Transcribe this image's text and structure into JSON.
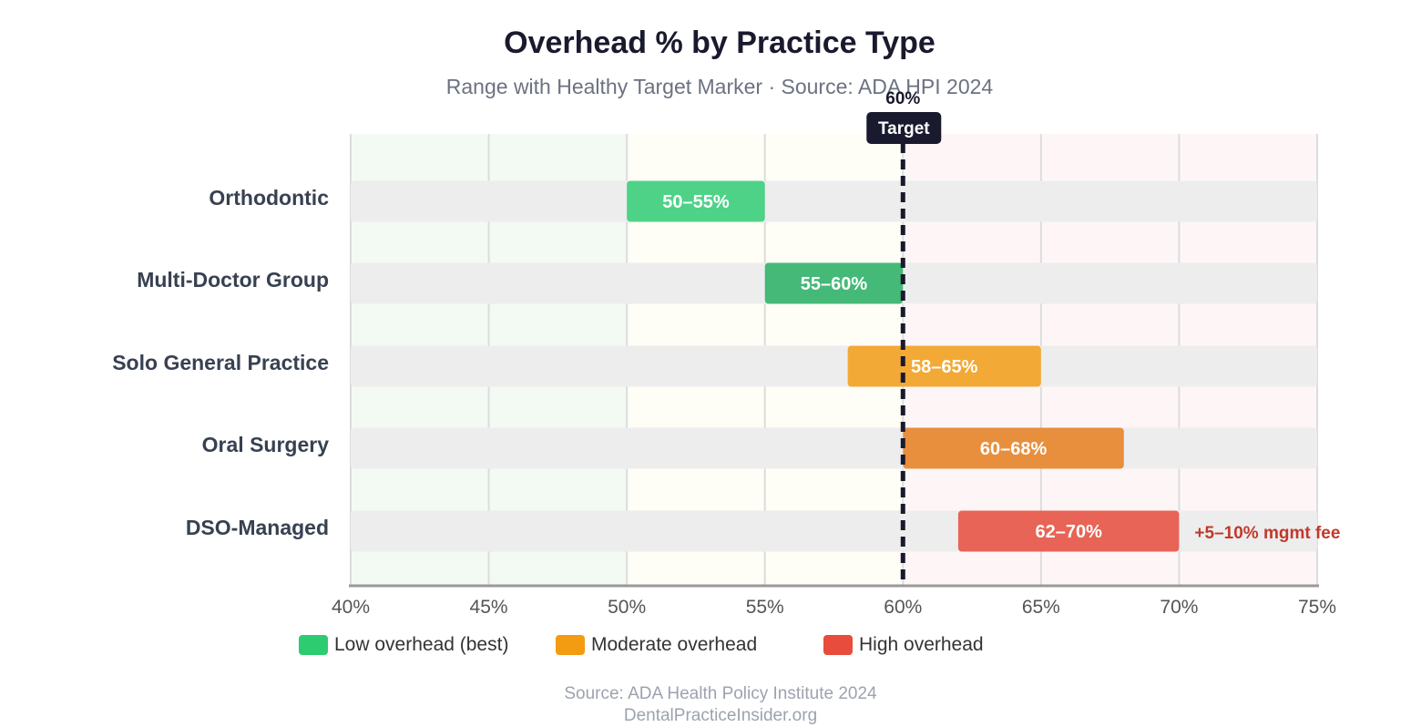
{
  "chart_data": {
    "type": "bar",
    "title": "Overhead % by Practice Type",
    "subtitle": "Range with Healthy Target Marker · Source: ADA HPI 2024",
    "xlim": [
      40,
      75
    ],
    "x_ticks": [
      40,
      45,
      50,
      55,
      60,
      65,
      70,
      75
    ],
    "x_tick_labels": [
      "40%",
      "45%",
      "50%",
      "55%",
      "60%",
      "65%",
      "70%",
      "75%"
    ],
    "categories": [
      "Orthodontic",
      "Multi-Doctor Group",
      "Solo General Practice",
      "Oral Surgery",
      "DSO-Managed"
    ],
    "ranges": [
      {
        "category": "Orthodontic",
        "low": 50,
        "high": 55,
        "label": "50–55%",
        "color": "#4ed287"
      },
      {
        "category": "Multi-Doctor Group",
        "low": 55,
        "high": 60,
        "label": "55–60%",
        "color": "#45b977"
      },
      {
        "category": "Solo General Practice",
        "low": 58,
        "high": 65,
        "label": "58–65%",
        "color": "#f3a935"
      },
      {
        "category": "Oral Surgery",
        "low": 60,
        "high": 68,
        "label": "60–68%",
        "color": "#e88f3e"
      },
      {
        "category": "DSO-Managed",
        "low": 62,
        "high": 70,
        "label": "62–70%",
        "color": "#e76456"
      }
    ],
    "annotation": {
      "category": "DSO-Managed",
      "text": "+5–10% mgmt fee",
      "color": "#c0392b"
    },
    "target": {
      "value": 60,
      "value_label": "60%",
      "label": "Target"
    },
    "zones": [
      {
        "from": 40,
        "to": 50,
        "color": "#f3f9f3"
      },
      {
        "from": 50,
        "to": 60,
        "color": "#fefdf6"
      },
      {
        "from": 60,
        "to": 75,
        "color": "#fef6f6"
      }
    ],
    "grid": true,
    "legend": [
      {
        "label": "Low overhead (best)",
        "color": "#2ecc71"
      },
      {
        "label": "Moderate overhead",
        "color": "#f39c12"
      },
      {
        "label": "High overhead",
        "color": "#e74c3c"
      }
    ],
    "legend_position": "bottom"
  },
  "footer": {
    "source": "Source: ADA Health Policy Institute 2024",
    "site": "DentalPracticeInsider.org"
  }
}
